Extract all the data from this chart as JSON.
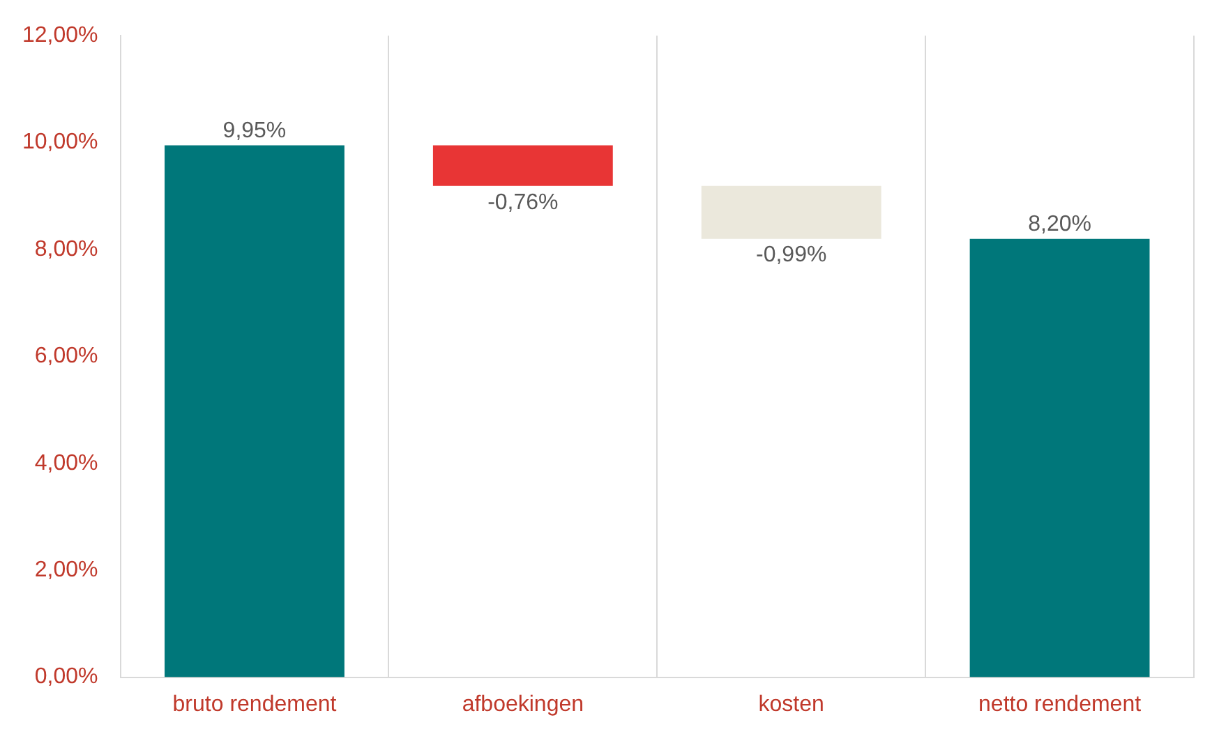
{
  "chart_data": {
    "type": "bar",
    "categories": [
      "bruto rendement",
      "afboekingen",
      "kosten",
      "netto rendement"
    ],
    "values": [
      9.95,
      -0.76,
      -0.99,
      8.2
    ],
    "base": [
      0,
      9.95,
      9.19,
      0
    ],
    "colors": [
      "#00777a",
      "#e83535",
      "#ebe8dc",
      "#00777a"
    ],
    "value_labels": [
      "9,95%",
      "-0,76%",
      "-0,99%",
      "8,20%"
    ],
    "ylim": [
      0,
      12
    ],
    "yticks": [
      {
        "value": 0,
        "label": "0,00%"
      },
      {
        "value": 2,
        "label": "2,00%"
      },
      {
        "value": 4,
        "label": "4,00%"
      },
      {
        "value": 6,
        "label": "6,00%"
      },
      {
        "value": 8,
        "label": "8,00%"
      },
      {
        "value": 10,
        "label": "10,00%"
      },
      {
        "value": 12,
        "label": "12,00%"
      }
    ],
    "grid": "x",
    "legend": false
  }
}
